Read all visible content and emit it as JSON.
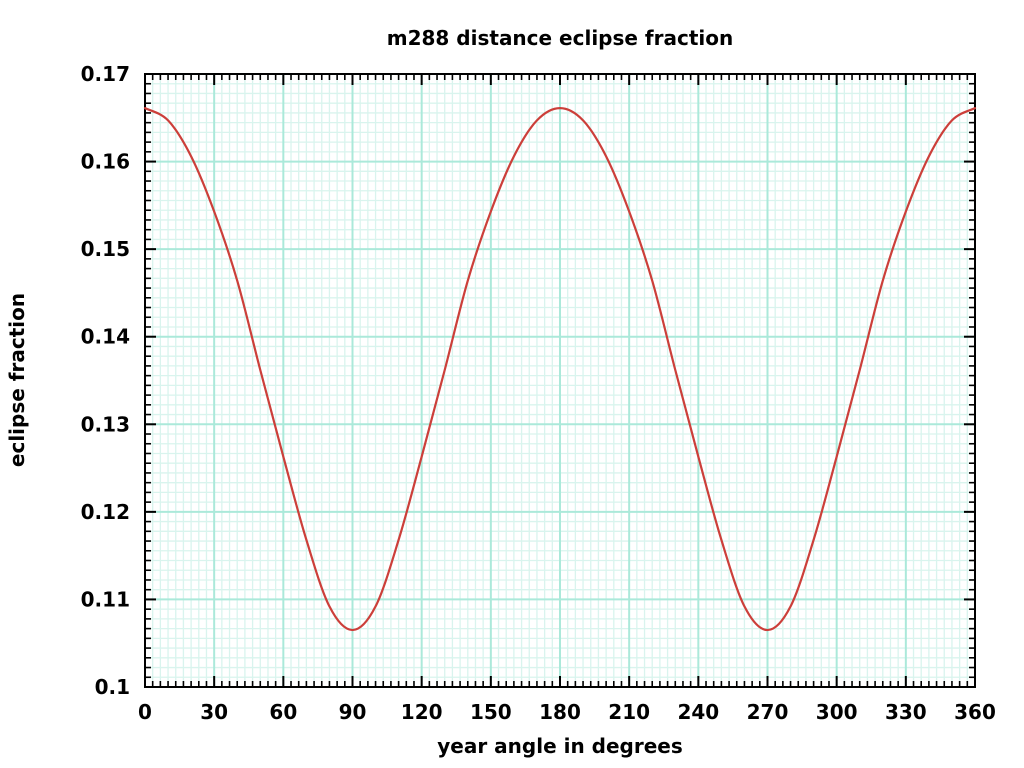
{
  "window": {
    "background": "#ffffff"
  },
  "chart_data": {
    "type": "line",
    "title": "m288 distance eclipse fraction",
    "xlabel": "year angle in degrees",
    "ylabel": "eclipse fraction",
    "xlim": [
      0,
      360
    ],
    "ylim": [
      0.1,
      0.17
    ],
    "x_ticks": [
      0,
      30,
      60,
      90,
      120,
      150,
      180,
      210,
      240,
      270,
      300,
      330,
      360
    ],
    "x_tick_labels": [
      "0",
      "30",
      "60",
      "90",
      "120",
      "150",
      "180",
      "210",
      "240",
      "270",
      "300",
      "330",
      "360"
    ],
    "y_ticks": [
      0.1,
      0.11,
      0.12,
      0.13,
      0.14,
      0.15,
      0.16,
      0.17
    ],
    "y_tick_labels": [
      "0.1",
      "0.11",
      "0.12",
      "0.13",
      "0.14",
      "0.15",
      "0.16",
      "0.17"
    ],
    "x_minor_divisions": 9,
    "y_minor_divisions": 9,
    "grid": "major and minor gridlines on",
    "legend": "none",
    "series": [
      {
        "name": "eclipse fraction vs year angle",
        "color": "#cc3f3a",
        "x": [
          0,
          10,
          20,
          30,
          40,
          50,
          60,
          70,
          80,
          90,
          100,
          110,
          120,
          130,
          140,
          150,
          160,
          170,
          180,
          190,
          200,
          210,
          220,
          230,
          240,
          250,
          260,
          270,
          280,
          290,
          300,
          310,
          320,
          330,
          340,
          350,
          360
        ],
        "y": [
          0.1661,
          0.1647,
          0.1606,
          0.1543,
          0.1464,
          0.1362,
          0.1263,
          0.1168,
          0.1092,
          0.1065,
          0.1092,
          0.1168,
          0.1263,
          0.1362,
          0.1464,
          0.1543,
          0.1606,
          0.1647,
          0.1661,
          0.1647,
          0.1606,
          0.1543,
          0.1464,
          0.1362,
          0.1263,
          0.1168,
          0.1092,
          0.1065,
          0.1092,
          0.1168,
          0.1263,
          0.1362,
          0.1464,
          0.1543,
          0.1606,
          0.1647,
          0.1661
        ]
      }
    ],
    "y_max": 0.1661,
    "y_min": 0.1065,
    "maxima_at_degrees": [
      0,
      180,
      360
    ],
    "minima_at_degrees": [
      90,
      270
    ]
  },
  "style": {
    "plot_background": "#ffffff",
    "border_color": "#000000",
    "major_grid_color": "#abe9da",
    "minor_grid_color": "#d9f4ee",
    "text_color": "#000000",
    "curve_color": "#cc3f3a"
  }
}
